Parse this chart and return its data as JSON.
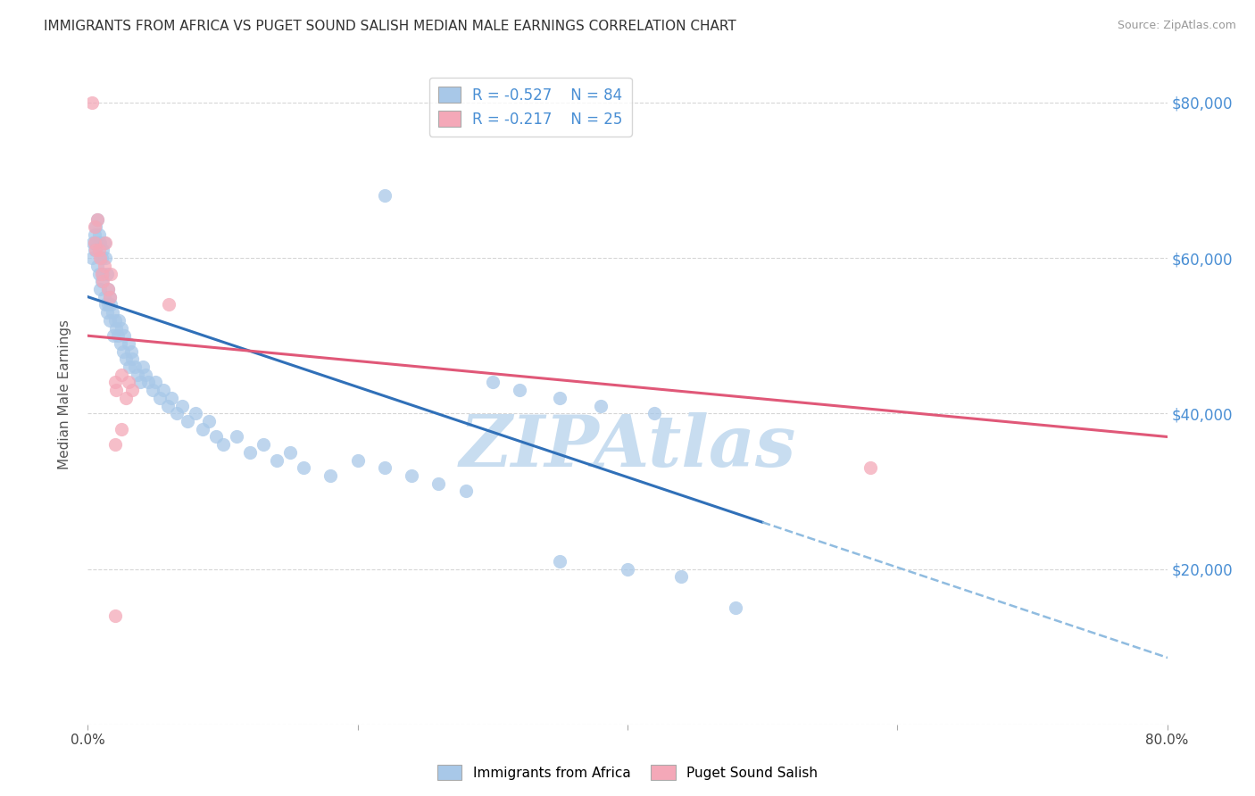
{
  "title": "IMMIGRANTS FROM AFRICA VS PUGET SOUND SALISH MEDIAN MALE EARNINGS CORRELATION CHART",
  "source": "Source: ZipAtlas.com",
  "ylabel": "Median Male Earnings",
  "xlim": [
    0,
    0.8
  ],
  "ylim": [
    0,
    85000
  ],
  "series1_name": "Immigrants from Africa",
  "series1_color": "#a8c8e8",
  "series1_R": -0.527,
  "series1_N": 84,
  "series2_name": "Puget Sound Salish",
  "series2_color": "#f4a8b8",
  "series2_R": -0.217,
  "series2_N": 25,
  "blue_line_color": "#3070b8",
  "pink_line_color": "#e05878",
  "dashed_line_color": "#90bce0",
  "watermark_text": "ZIPAtlas",
  "watermark_color": "#c8ddf0",
  "background_color": "#ffffff",
  "title_fontsize": 11,
  "axis_label_color": "#4a8fd4",
  "blue_line_x0": 0.0,
  "blue_line_y0": 55000,
  "blue_line_x1": 0.5,
  "blue_line_y1": 26000,
  "pink_line_x0": 0.0,
  "pink_line_y0": 50000,
  "pink_line_x1": 0.8,
  "pink_line_y1": 37000,
  "series1_x": [
    0.003,
    0.004,
    0.005,
    0.005,
    0.006,
    0.006,
    0.007,
    0.007,
    0.008,
    0.008,
    0.009,
    0.009,
    0.01,
    0.01,
    0.011,
    0.011,
    0.012,
    0.012,
    0.013,
    0.013,
    0.014,
    0.014,
    0.015,
    0.015,
    0.016,
    0.016,
    0.017,
    0.018,
    0.019,
    0.02,
    0.021,
    0.022,
    0.023,
    0.024,
    0.025,
    0.026,
    0.027,
    0.028,
    0.03,
    0.031,
    0.032,
    0.033,
    0.035,
    0.037,
    0.039,
    0.041,
    0.043,
    0.045,
    0.048,
    0.05,
    0.053,
    0.056,
    0.059,
    0.062,
    0.066,
    0.07,
    0.074,
    0.08,
    0.085,
    0.09,
    0.095,
    0.1,
    0.11,
    0.12,
    0.13,
    0.14,
    0.15,
    0.16,
    0.18,
    0.2,
    0.22,
    0.24,
    0.26,
    0.28,
    0.22,
    0.3,
    0.32,
    0.35,
    0.38,
    0.42,
    0.35,
    0.4,
    0.44,
    0.48
  ],
  "series1_y": [
    60000,
    62000,
    63000,
    61000,
    64000,
    62000,
    65000,
    59000,
    63000,
    58000,
    62000,
    56000,
    60000,
    57000,
    61000,
    58000,
    62000,
    55000,
    60000,
    54000,
    58000,
    53000,
    56000,
    54000,
    55000,
    52000,
    54000,
    53000,
    50000,
    52000,
    51000,
    50000,
    52000,
    49000,
    51000,
    48000,
    50000,
    47000,
    49000,
    46000,
    48000,
    47000,
    46000,
    45000,
    44000,
    46000,
    45000,
    44000,
    43000,
    44000,
    42000,
    43000,
    41000,
    42000,
    40000,
    41000,
    39000,
    40000,
    38000,
    39000,
    37000,
    36000,
    37000,
    35000,
    36000,
    34000,
    35000,
    33000,
    32000,
    34000,
    33000,
    32000,
    31000,
    30000,
    68000,
    44000,
    43000,
    42000,
    41000,
    40000,
    21000,
    20000,
    19000,
    15000
  ],
  "series2_x": [
    0.003,
    0.005,
    0.005,
    0.006,
    0.007,
    0.008,
    0.009,
    0.01,
    0.011,
    0.012,
    0.013,
    0.015,
    0.016,
    0.017,
    0.02,
    0.021,
    0.025,
    0.028,
    0.03,
    0.033,
    0.02,
    0.025,
    0.06,
    0.58,
    0.02
  ],
  "series2_y": [
    80000,
    64000,
    62000,
    61000,
    65000,
    61000,
    60000,
    58000,
    57000,
    59000,
    62000,
    56000,
    55000,
    58000,
    44000,
    43000,
    45000,
    42000,
    44000,
    43000,
    36000,
    38000,
    54000,
    33000,
    14000
  ]
}
